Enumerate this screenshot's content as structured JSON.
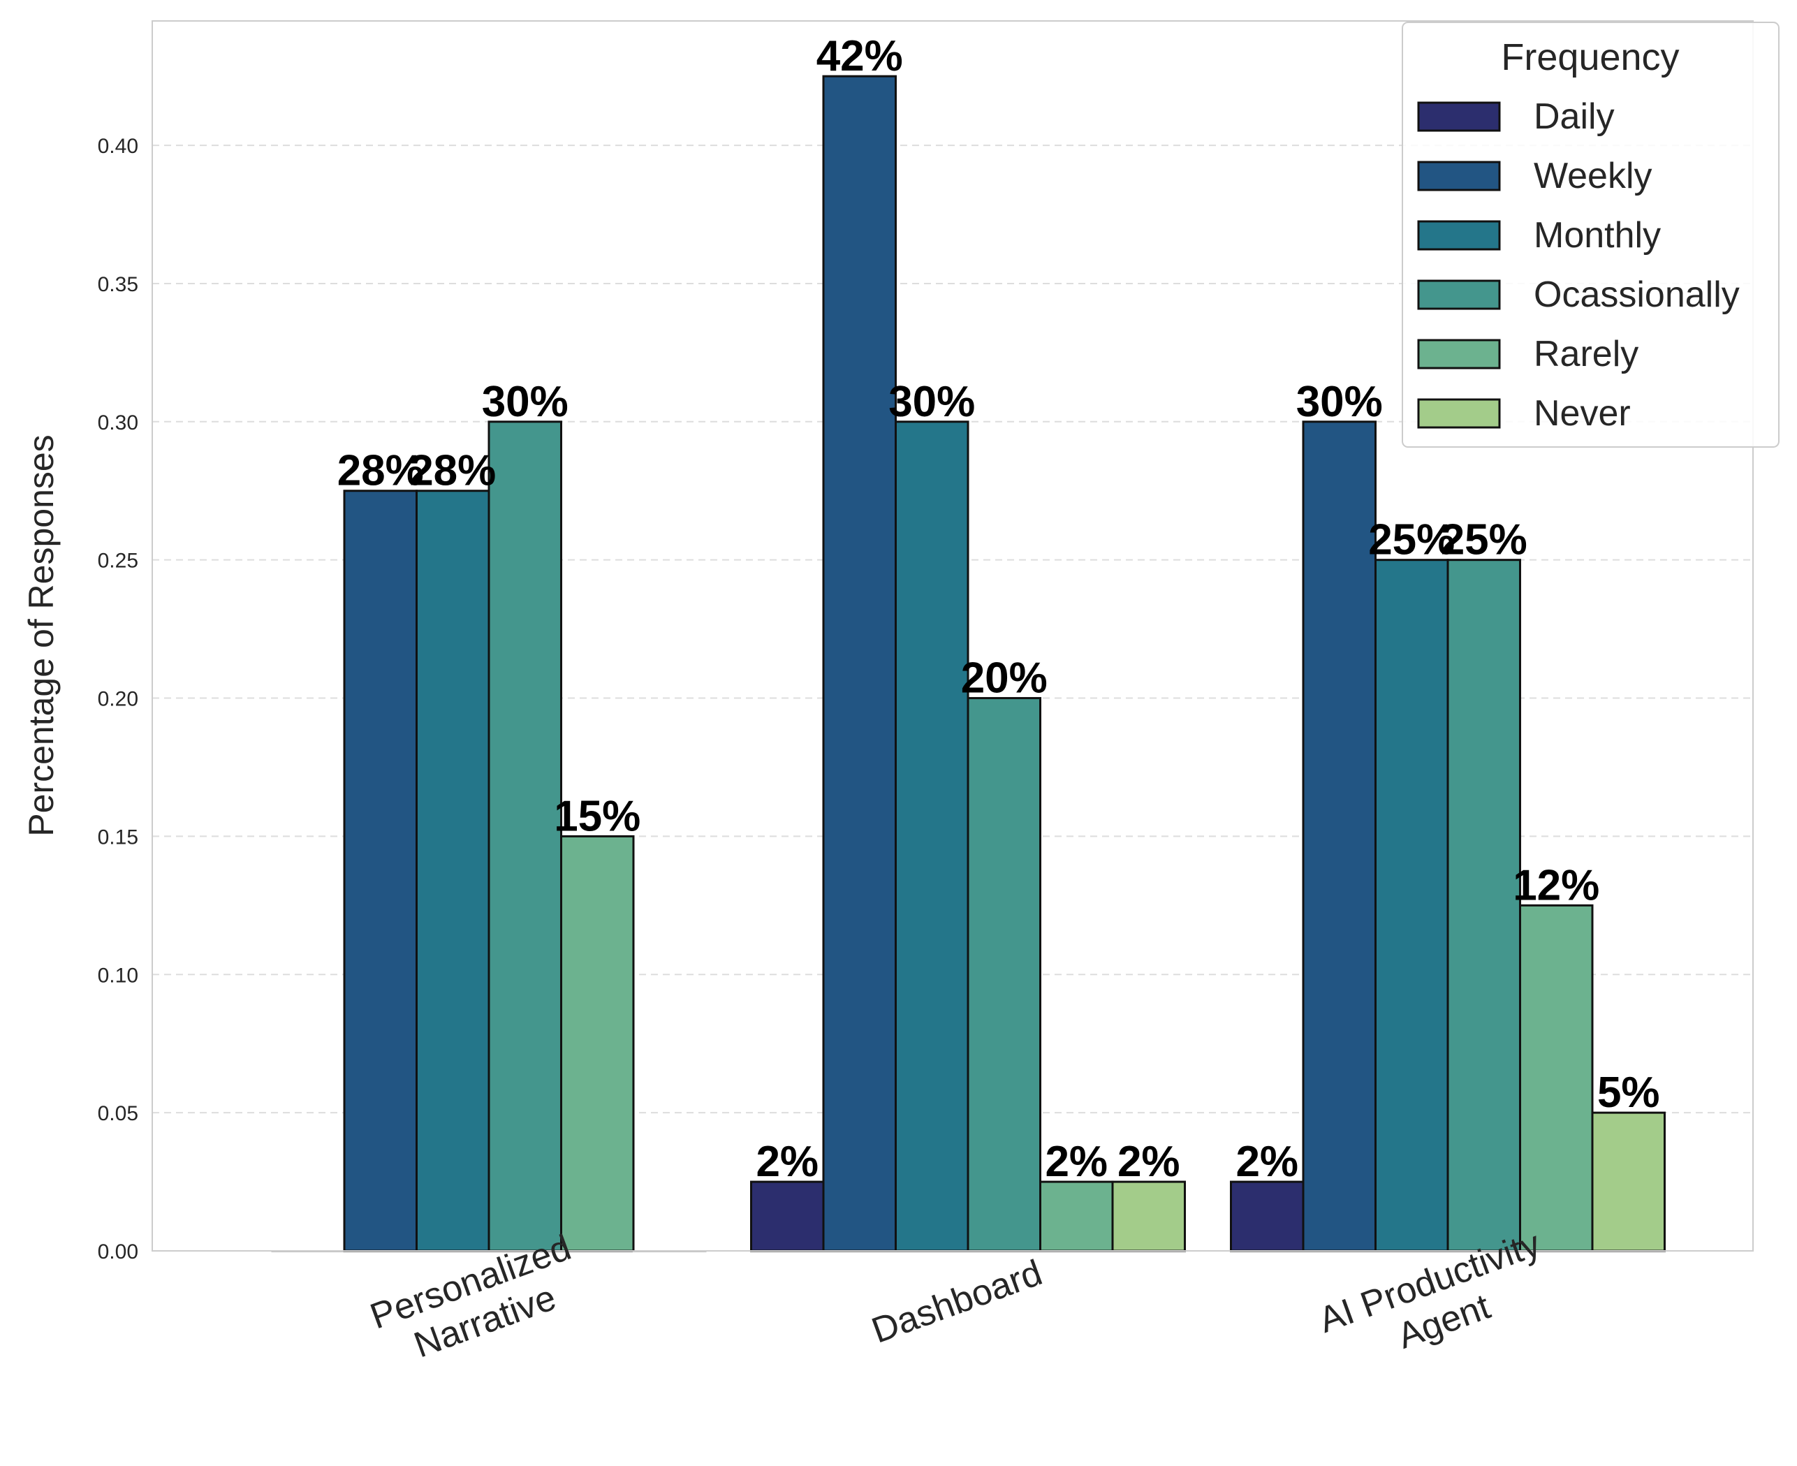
{
  "chart_data": {
    "type": "bar",
    "title": "",
    "xlabel": "",
    "ylabel": "Percentage of Responses",
    "ylim": [
      0,
      0.445
    ],
    "yticks": [
      0.0,
      0.05,
      0.1,
      0.15,
      0.2,
      0.25,
      0.3,
      0.35,
      0.4
    ],
    "ytick_labels": [
      "0.00",
      "0.05",
      "0.10",
      "0.15",
      "0.20",
      "0.25",
      "0.30",
      "0.35",
      "0.40"
    ],
    "grid": "horizontal dashed",
    "categories": [
      {
        "lines": [
          "Personalized",
          "Narrative"
        ]
      },
      {
        "lines": [
          "Dashboard"
        ]
      },
      {
        "lines": [
          "AI Productivity",
          "Agent"
        ]
      }
    ],
    "legend": {
      "title": "Frequency",
      "placement": "top-right"
    },
    "series": [
      {
        "name": "Daily",
        "color": "#2c2e6e",
        "values": [
          0,
          0.025,
          0.025
        ],
        "labels": [
          "",
          "2%",
          "2%"
        ]
      },
      {
        "name": "Weekly",
        "color": "#225583",
        "values": [
          0.275,
          0.425,
          0.3
        ],
        "labels": [
          "28%",
          "42%",
          "30%"
        ]
      },
      {
        "name": "Monthly",
        "color": "#24768a",
        "values": [
          0.275,
          0.3,
          0.25
        ],
        "labels": [
          "28%",
          "30%",
          "25%"
        ]
      },
      {
        "name": "Ocassionally",
        "color": "#44968d",
        "values": [
          0.3,
          0.2,
          0.25
        ],
        "labels": [
          "30%",
          "20%",
          "25%"
        ]
      },
      {
        "name": "Rarely",
        "color": "#6cb28f",
        "values": [
          0.15,
          0.025,
          0.125
        ],
        "labels": [
          "15%",
          "2%",
          "12%"
        ]
      },
      {
        "name": "Never",
        "color": "#a3cc8a",
        "values": [
          0,
          0.025,
          0.05
        ],
        "labels": [
          "",
          "2%",
          "5%"
        ]
      }
    ]
  }
}
